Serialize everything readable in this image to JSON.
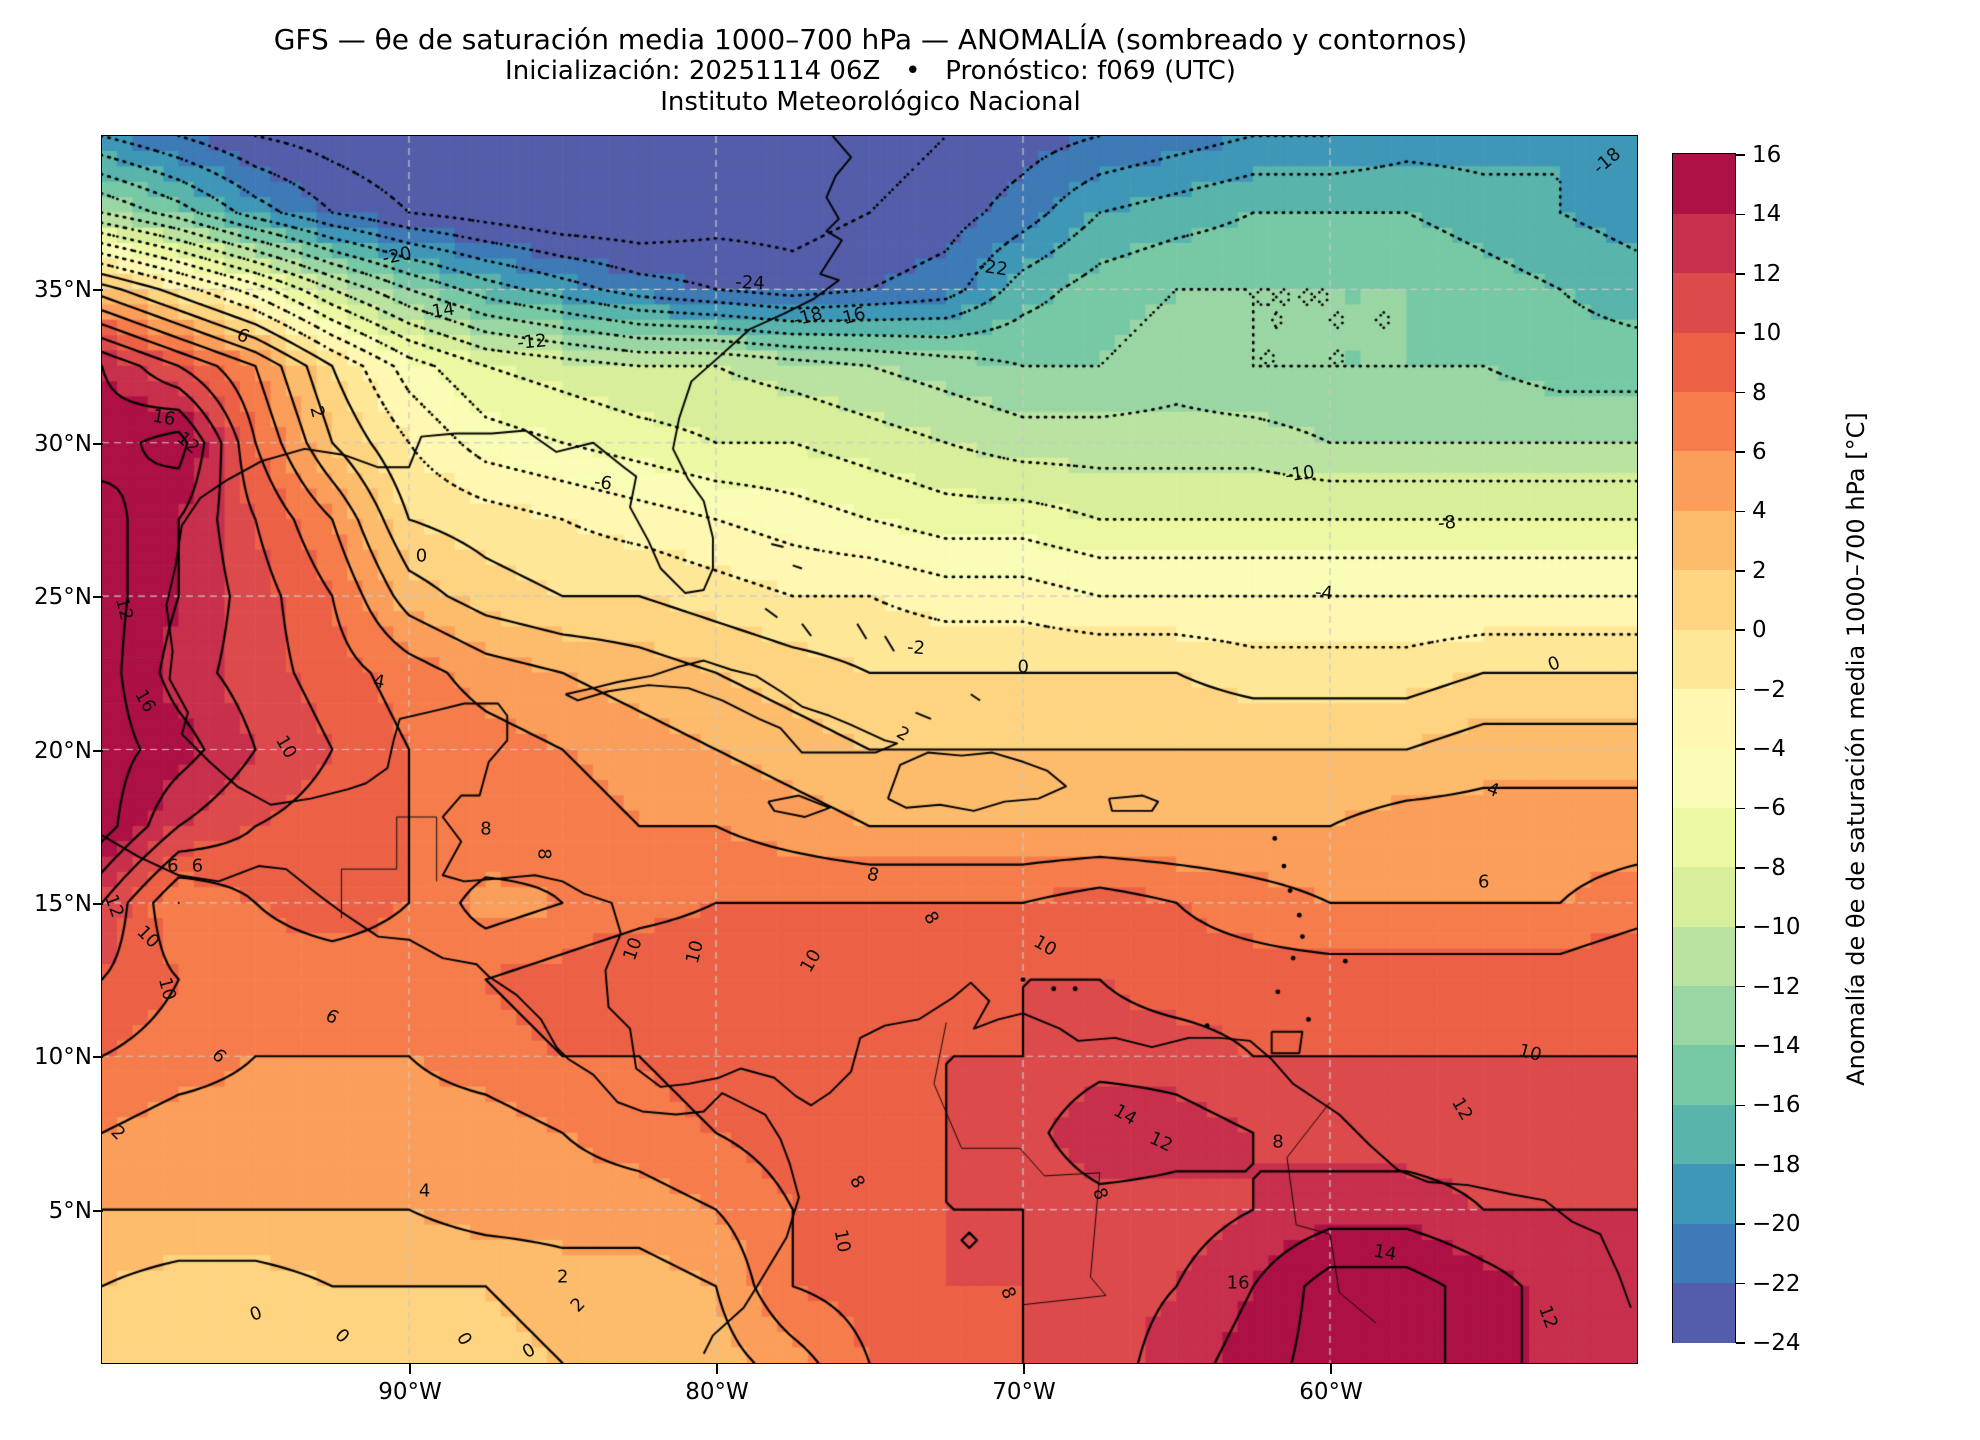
{
  "header": {
    "title": "GFS — θe de saturación media 1000–700 hPa — ANOMALÍA (sombreado y contornos)",
    "subtitle": "Inicialización: 20251114 06Z   •   Pronóstico: f069 (UTC)",
    "institution": "Instituto Meteorológico Nacional"
  },
  "axes": {
    "lat_ticks": [
      {
        "label": "35°N",
        "value": 35
      },
      {
        "label": "30°N",
        "value": 30
      },
      {
        "label": "25°N",
        "value": 25
      },
      {
        "label": "20°N",
        "value": 20
      },
      {
        "label": "15°N",
        "value": 15
      },
      {
        "label": "10°N",
        "value": 10
      },
      {
        "label": "5°N",
        "value": 5
      }
    ],
    "lon_ticks": [
      {
        "label": "90°W",
        "value": -90
      },
      {
        "label": "80°W",
        "value": -80
      },
      {
        "label": "70°W",
        "value": -70
      },
      {
        "label": "60°W",
        "value": -60
      }
    ]
  },
  "colorbar": {
    "label": "Anomalía de θe de saturación media 1000–700 hPa [°C]",
    "vmin": -24,
    "vmax": 16,
    "tick_step": 2,
    "tick_labels": [
      "16",
      "14",
      "12",
      "10",
      "8",
      "6",
      "4",
      "2",
      "0",
      "−2",
      "−4",
      "−6",
      "−8",
      "−10",
      "−12",
      "−14",
      "−16",
      "−18",
      "−20",
      "−22",
      "−24"
    ],
    "colors_spectral_r": [
      "#5e4fa2",
      "#3288bd",
      "#66c2a5",
      "#abdda4",
      "#e6f598",
      "#ffffbf",
      "#fee08b",
      "#fdae61",
      "#f46d43",
      "#d53e4f",
      "#9e0142"
    ]
  },
  "chart_data": {
    "type": "heatmap",
    "title": "GFS — θe de saturación media 1000–700 hPa — ANOMALÍA (sombreado y contornos)",
    "xlabel": "longitude",
    "ylabel": "latitude",
    "lon_range": [
      -100,
      -50
    ],
    "lat_range": [
      0,
      40
    ],
    "contour_interval": 2,
    "negative_contours_dotted": true,
    "grid_on": true,
    "gridline_lons": [
      -90,
      -80,
      -70,
      -60
    ],
    "gridline_lats": [
      5,
      10,
      15,
      20,
      25,
      30,
      35
    ],
    "contour_color": "#000000",
    "gridline_color": "#c8c8c8",
    "coastline_color": "#000000",
    "grid_lons": [
      -100,
      -97.5,
      -95,
      -92.5,
      -90,
      -87.5,
      -85,
      -82.5,
      -80,
      -77.5,
      -75,
      -72.5,
      -70,
      -67.5,
      -65,
      -62.5,
      -60,
      -57.5,
      -55,
      -52.5,
      -50
    ],
    "grid_lats": [
      40,
      37.5,
      35,
      32.5,
      30,
      27.5,
      25,
      22.5,
      20,
      17.5,
      15,
      12.5,
      10,
      7.5,
      5,
      2.5,
      0
    ],
    "anomaly_c": [
      [
        -20,
        -22,
        -24,
        -25,
        -26,
        -26,
        -26,
        -26,
        -26,
        -25,
        -25,
        -24,
        -23,
        -22,
        -21,
        -20,
        -20,
        -19,
        -19,
        -18,
        -18
      ],
      [
        -12,
        -15,
        -19,
        -22,
        -24,
        -25,
        -26,
        -26,
        -25,
        -25,
        -24,
        -23,
        -21,
        -18,
        -17,
        -16,
        -16,
        -16,
        -17,
        -18,
        -19
      ],
      [
        3,
        -1,
        -5,
        -10,
        -14,
        -17,
        -19,
        -21,
        -22,
        -23,
        -22,
        -21,
        -17,
        -15,
        -14,
        -14,
        -14,
        -14,
        -15,
        -16,
        -17
      ],
      [
        14,
        10,
        6,
        0,
        -5,
        -8,
        -9,
        -10,
        -10,
        -11,
        -12,
        -13,
        -14,
        -14,
        -13,
        -14,
        -14,
        -14,
        -14,
        -15,
        -15
      ],
      [
        15,
        17,
        8,
        2,
        -2,
        -5,
        -6,
        -7,
        -8,
        -8,
        -9,
        -10,
        -11,
        -11,
        -11,
        -11,
        -12,
        -12,
        -12,
        -12,
        -12
      ],
      [
        17,
        14,
        10,
        6,
        0,
        -1,
        -2,
        -3,
        -4,
        -5,
        -6,
        -7,
        -7,
        -8,
        -8,
        -8,
        -8,
        -8,
        -8,
        -8,
        -8
      ],
      [
        17,
        14,
        11,
        8,
        3,
        1,
        0,
        0,
        -1,
        -2,
        -2,
        -3,
        -3,
        -4,
        -4,
        -4,
        -4,
        -4,
        -4,
        -4,
        -4
      ],
      [
        17,
        13,
        11,
        9,
        7,
        5,
        4,
        3,
        2,
        1,
        0,
        0,
        0,
        0,
        0,
        -1,
        -1,
        -1,
        0,
        0,
        0
      ],
      [
        17,
        15,
        12,
        10,
        8,
        7,
        6,
        5,
        4,
        3,
        2,
        2,
        2,
        2,
        2,
        2,
        2,
        2,
        3,
        3,
        3
      ],
      [
        17,
        12,
        10,
        9,
        8,
        8,
        7,
        6,
        6,
        5,
        4,
        4,
        4,
        4,
        4,
        4,
        4,
        5,
        5,
        5,
        5
      ],
      [
        12,
        6,
        8,
        9,
        8,
        5,
        6,
        7,
        8,
        8,
        8,
        8,
        8,
        9,
        8,
        7,
        6,
        6,
        6,
        6,
        7
      ],
      [
        10,
        8,
        7,
        7,
        7,
        8,
        9,
        10,
        10,
        10,
        9,
        9,
        10,
        10,
        9,
        9,
        9,
        9,
        9,
        9,
        10
      ],
      [
        8,
        7,
        6,
        6,
        6,
        7,
        8,
        8,
        9,
        9,
        9,
        10,
        10,
        11,
        11,
        10,
        10,
        10,
        10,
        10,
        10
      ],
      [
        6,
        5,
        5,
        5,
        5,
        5,
        6,
        7,
        8,
        9,
        9,
        10,
        11,
        14,
        13,
        12,
        11,
        11,
        11,
        11,
        11
      ],
      [
        4,
        4,
        4,
        4,
        4,
        5,
        5,
        5,
        6,
        8,
        10,
        10,
        10,
        11,
        11,
        12,
        13,
        13,
        12,
        12,
        12
      ],
      [
        2,
        1,
        1,
        2,
        2,
        2,
        3,
        3,
        4,
        8,
        9,
        10,
        10,
        11,
        12,
        14,
        17,
        17,
        15,
        13,
        12
      ],
      [
        1,
        0,
        0,
        0,
        1,
        1,
        2,
        3,
        3,
        5,
        8,
        9,
        10,
        11,
        13,
        15,
        17,
        17,
        15,
        13,
        12
      ]
    ],
    "contour_labels": [
      {
        "t": "-20",
        "lon": -90.4,
        "lat": 36.1,
        "r": -12
      },
      {
        "t": "-24",
        "lon": -78.9,
        "lat": 35.2,
        "r": 3
      },
      {
        "t": "-14",
        "lon": -89.0,
        "lat": 34.3,
        "r": -8
      },
      {
        "t": "-12",
        "lon": -86.0,
        "lat": 33.3,
        "r": -5
      },
      {
        "t": "-18",
        "lon": -77.0,
        "lat": 34.1,
        "r": -15
      },
      {
        "t": "-16",
        "lon": -75.6,
        "lat": 34.1,
        "r": -15
      },
      {
        "t": "-22",
        "lon": -71.0,
        "lat": 35.7,
        "r": 8
      },
      {
        "t": "-18",
        "lon": -51.0,
        "lat": 39.2,
        "r": -40
      },
      {
        "t": "16",
        "lon": -98.0,
        "lat": 30.8,
        "r": 10
      },
      {
        "t": "12",
        "lon": -97.2,
        "lat": 30.0,
        "r": 40
      },
      {
        "t": "12",
        "lon": -99.3,
        "lat": 24.6,
        "r": 75
      },
      {
        "t": "6",
        "lon": -95.4,
        "lat": 33.5,
        "r": 25
      },
      {
        "t": "2",
        "lon": -93.0,
        "lat": 31.0,
        "r": 75
      },
      {
        "t": "-6",
        "lon": -83.7,
        "lat": 28.7,
        "r": 8
      },
      {
        "t": "0",
        "lon": -89.6,
        "lat": 26.3,
        "r": 0
      },
      {
        "t": "4",
        "lon": -91.0,
        "lat": 22.2,
        "r": 10
      },
      {
        "t": "10",
        "lon": -94.0,
        "lat": 20.1,
        "r": 60
      },
      {
        "t": "16",
        "lon": -98.6,
        "lat": 21.6,
        "r": 60
      },
      {
        "t": "-10",
        "lon": -61.0,
        "lat": 29.0,
        "r": -8
      },
      {
        "t": "-8",
        "lon": -56.2,
        "lat": 27.4,
        "r": -5
      },
      {
        "t": "-4",
        "lon": -60.2,
        "lat": 25.1,
        "r": 5
      },
      {
        "t": "-2",
        "lon": -73.5,
        "lat": 23.3,
        "r": 5
      },
      {
        "t": "0",
        "lon": -70.0,
        "lat": 22.7,
        "r": 0
      },
      {
        "t": "0",
        "lon": -52.7,
        "lat": 22.8,
        "r": -20
      },
      {
        "t": "2",
        "lon": -73.9,
        "lat": 20.5,
        "r": 30
      },
      {
        "t": "4",
        "lon": -54.7,
        "lat": 18.7,
        "r": 20
      },
      {
        "t": "12",
        "lon": -99.6,
        "lat": 14.9,
        "r": 70
      },
      {
        "t": "10",
        "lon": -98.5,
        "lat": 13.9,
        "r": 45
      },
      {
        "t": "10",
        "lon": -97.9,
        "lat": 12.2,
        "r": 75
      },
      {
        "t": "6",
        "lon": -97.7,
        "lat": 16.2,
        "r": 0
      },
      {
        "t": "6",
        "lon": -96.9,
        "lat": 16.2,
        "r": 0
      },
      {
        "t": "8",
        "lon": -87.5,
        "lat": 17.4,
        "r": 0
      },
      {
        "t": "8",
        "lon": -85.6,
        "lat": 16.6,
        "r": 90
      },
      {
        "t": "6",
        "lon": -92.5,
        "lat": 11.3,
        "r": 30
      },
      {
        "t": "6",
        "lon": -96.2,
        "lat": 10.0,
        "r": 45
      },
      {
        "t": "10",
        "lon": -82.7,
        "lat": 13.5,
        "r": -70
      },
      {
        "t": "10",
        "lon": -80.7,
        "lat": 13.4,
        "r": -75
      },
      {
        "t": "10",
        "lon": -76.9,
        "lat": 13.1,
        "r": -60
      },
      {
        "t": "8",
        "lon": -74.9,
        "lat": 15.9,
        "r": 15
      },
      {
        "t": "8",
        "lon": -73.0,
        "lat": 14.5,
        "r": 60
      },
      {
        "t": "6",
        "lon": -55.0,
        "lat": 15.7,
        "r": 0
      },
      {
        "t": "10",
        "lon": -69.3,
        "lat": 13.6,
        "r": 30
      },
      {
        "t": "10",
        "lon": -53.5,
        "lat": 10.1,
        "r": 15
      },
      {
        "t": "14",
        "lon": -66.7,
        "lat": 8.1,
        "r": 30
      },
      {
        "t": "12",
        "lon": -65.5,
        "lat": 7.2,
        "r": 25
      },
      {
        "t": "12",
        "lon": -55.7,
        "lat": 8.3,
        "r": 60
      },
      {
        "t": "8",
        "lon": -61.7,
        "lat": 7.2,
        "r": 0
      },
      {
        "t": "8",
        "lon": -67.5,
        "lat": 5.5,
        "r": 70
      },
      {
        "t": "2",
        "lon": -99.5,
        "lat": 7.5,
        "r": 45
      },
      {
        "t": "4",
        "lon": -89.5,
        "lat": 5.6,
        "r": 0
      },
      {
        "t": "0",
        "lon": -95.0,
        "lat": 1.6,
        "r": -20
      },
      {
        "t": "0",
        "lon": -92.2,
        "lat": 0.9,
        "r": 45
      },
      {
        "t": "0",
        "lon": -88.2,
        "lat": 0.8,
        "r": 60
      },
      {
        "t": "0",
        "lon": -86.1,
        "lat": 0.4,
        "r": -30
      },
      {
        "t": "2",
        "lon": -85.0,
        "lat": 2.8,
        "r": 0
      },
      {
        "t": "2",
        "lon": -84.5,
        "lat": 1.9,
        "r": -45
      },
      {
        "t": "16",
        "lon": -63.0,
        "lat": 2.6,
        "r": 0
      },
      {
        "t": "14",
        "lon": -58.2,
        "lat": 3.6,
        "r": 10
      },
      {
        "t": "12",
        "lon": -52.9,
        "lat": 1.5,
        "r": 70
      },
      {
        "t": "10",
        "lon": -75.9,
        "lat": 4.0,
        "r": 80
      },
      {
        "t": "8",
        "lon": -75.4,
        "lat": 5.9,
        "r": 60
      },
      {
        "t": "8",
        "lon": -70.5,
        "lat": 2.3,
        "r": 70
      }
    ]
  }
}
